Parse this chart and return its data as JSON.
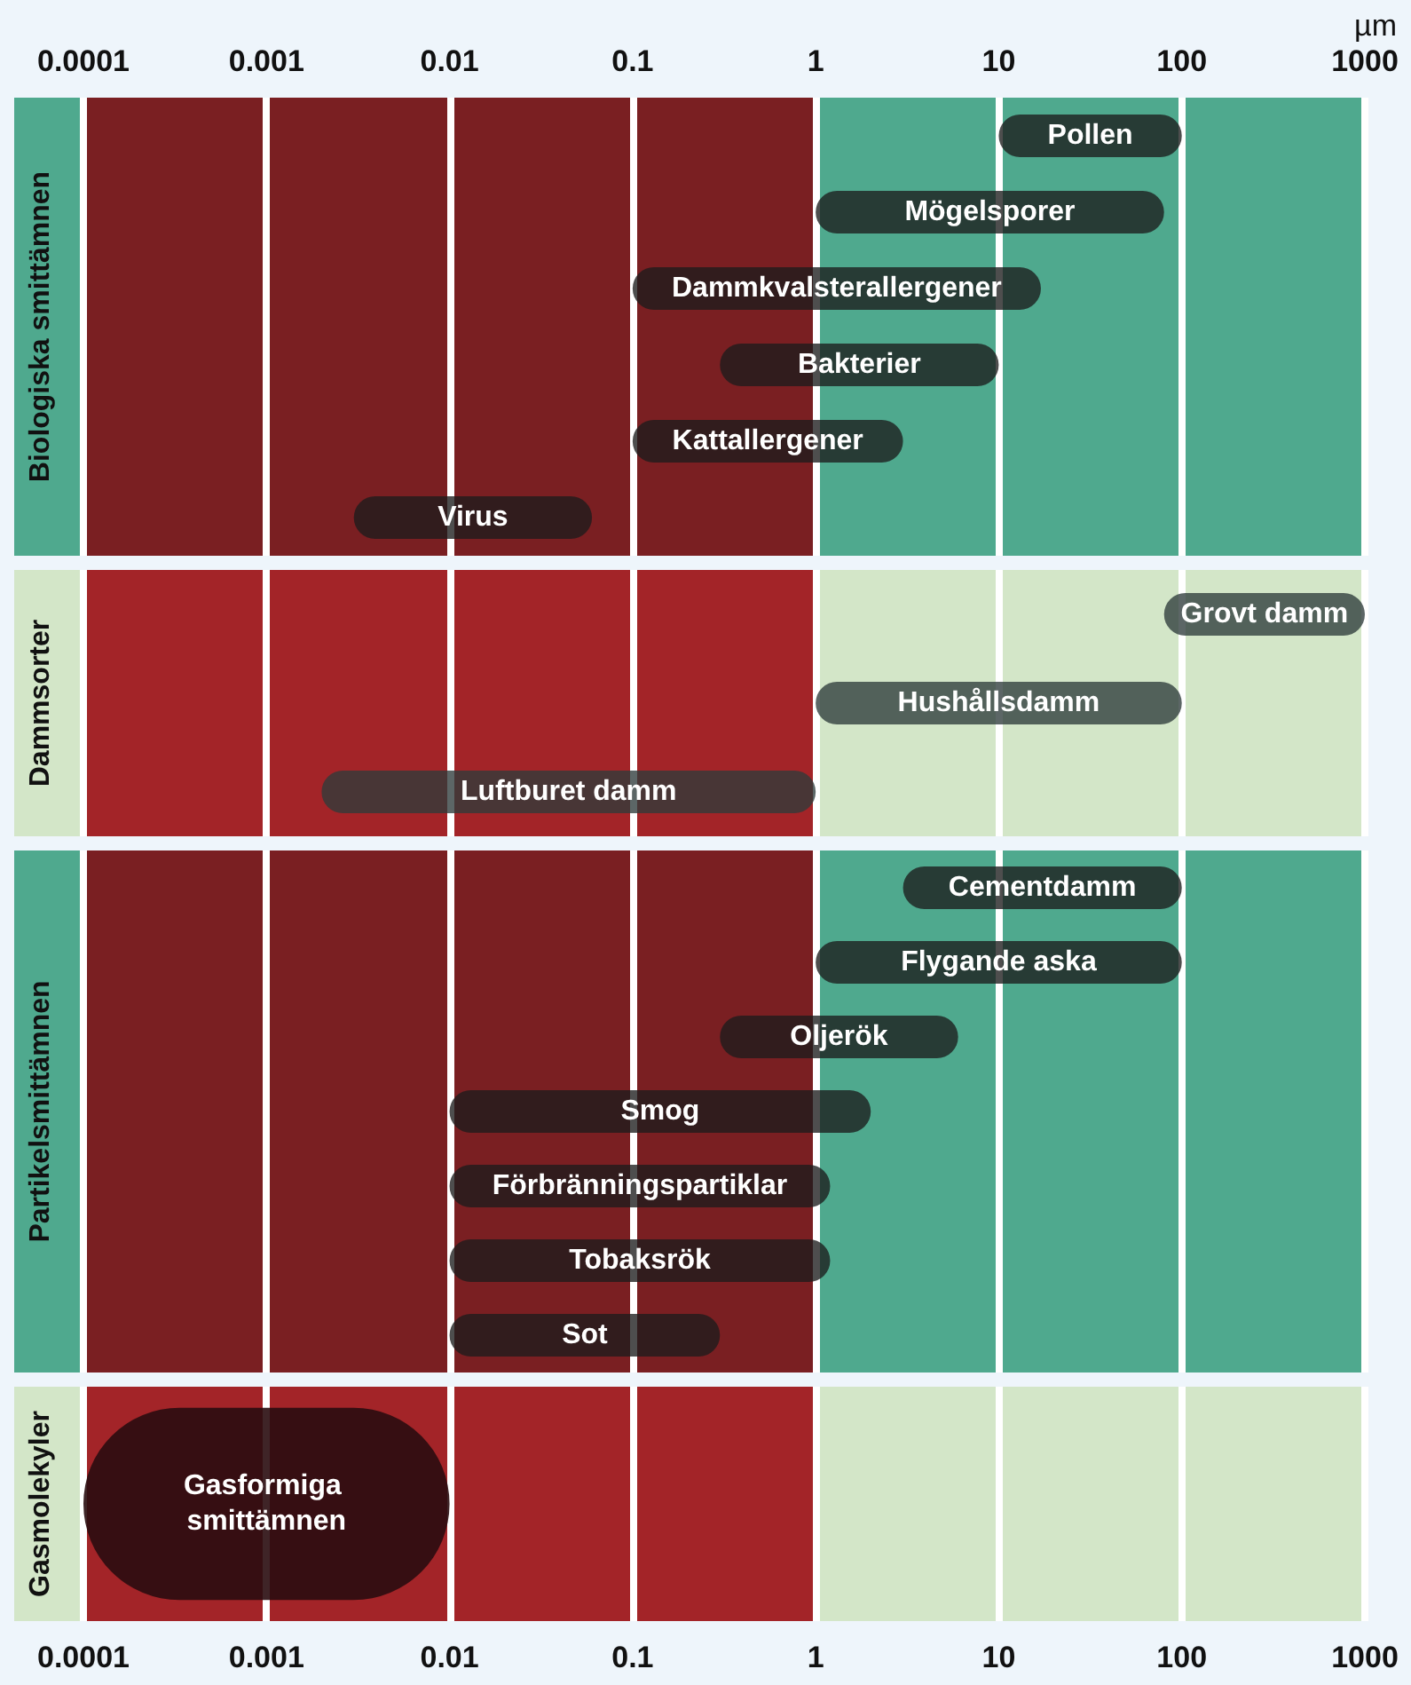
{
  "chart_data": [
    {
      "type": "bar",
      "orientation": "horizontal",
      "log": "x",
      "xlabel": "µm",
      "ylabel": "Biologiska smittämnen",
      "categories": [
        "Pollen",
        "Mögelsporer",
        "Dammkvalsterallergener",
        "Bakterier",
        "Kattallergener",
        "Virus"
      ],
      "base": [
        10,
        1,
        0.1,
        0.3,
        0.1,
        0.003
      ],
      "values": [
        90,
        79,
        16.9,
        9.7,
        2.9,
        0.057
      ],
      "color": "#1c1c1c",
      "xlim": [
        0.0001,
        1000
      ],
      "xticks": [
        0.0001,
        0.001,
        0.01,
        0.1,
        1,
        10,
        100,
        1000
      ],
      "grid": "x",
      "tick_labels": "x",
      "bands": [
        {
          "axis": "x",
          "from": 0.0001,
          "to": 1,
          "color": "#7a1f22"
        },
        {
          "axis": "x",
          "from": 1,
          "to": 1000,
          "color": "#4fa98e"
        }
      ]
    },
    {
      "type": "bar",
      "orientation": "horizontal",
      "log": "x",
      "ylabel": "Dammsorter",
      "categories": [
        "Grovt damm",
        "Hushållsdamm",
        "Luftburet damm"
      ],
      "base": [
        80,
        1,
        0.002
      ],
      "values": [
        920,
        99,
        0.998
      ],
      "color": "#2e3b3b",
      "xlim": [
        0.0001,
        1000
      ],
      "xticks": [
        0.0001,
        0.001,
        0.01,
        0.1,
        1,
        10,
        100,
        1000
      ],
      "grid": "x",
      "tick_labels": false,
      "bands": [
        {
          "axis": "x",
          "from": 0.0001,
          "to": 1,
          "color": "#a32428"
        },
        {
          "axis": "x",
          "from": 1,
          "to": 1000,
          "color": "#d3e6c8"
        }
      ]
    },
    {
      "type": "bar",
      "orientation": "horizontal",
      "log": "x",
      "ylabel": "Partikelsmittämnen",
      "categories": [
        "Cementdamm",
        "Flygande aska",
        "Oljerök",
        "Smog",
        "Förbränningspartiklar",
        "Tobaksrök",
        "Sot"
      ],
      "base": [
        3,
        1,
        0.3,
        0.01,
        0.01,
        0.01,
        0.01
      ],
      "values": [
        97,
        99,
        5.7,
        1.99,
        1.19,
        1.19,
        0.29
      ],
      "color": "#1c1c1c",
      "xlim": [
        0.0001,
        1000
      ],
      "xticks": [
        0.0001,
        0.001,
        0.01,
        0.1,
        1,
        10,
        100,
        1000
      ],
      "grid": "x",
      "tick_labels": false,
      "bands": [
        {
          "axis": "x",
          "from": 0.0001,
          "to": 1,
          "color": "#7a1f22"
        },
        {
          "axis": "x",
          "from": 1,
          "to": 1000,
          "color": "#4fa98e"
        }
      ]
    },
    {
      "type": "bar",
      "orientation": "horizontal",
      "log": "x",
      "ylabel": "Gasmolekyler",
      "categories": [
        "Gasformiga smittämnen"
      ],
      "base": [
        0.0001
      ],
      "values": [
        0.0099
      ],
      "color": "#2a0c10",
      "xlim": [
        0.0001,
        1000
      ],
      "xticks": [
        0.0001,
        0.001,
        0.01,
        0.1,
        1,
        10,
        100,
        1000
      ],
      "grid": "x",
      "tick_labels": "x",
      "bands": [
        {
          "axis": "x",
          "from": 0.0001,
          "to": 1,
          "color": "#a32428"
        },
        {
          "axis": "x",
          "from": 1,
          "to": 1000,
          "color": "#d3e6c8"
        }
      ]
    }
  ]
}
